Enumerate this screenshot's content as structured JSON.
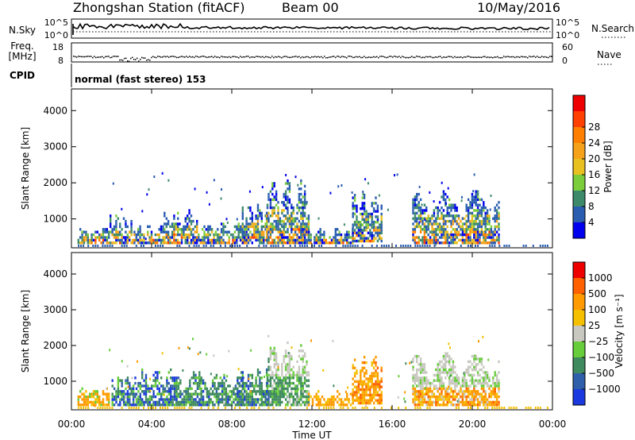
{
  "header": {
    "station": "Zhongshan Station (fitACF)",
    "beam": "Beam 00",
    "date": "10/May/2016"
  },
  "strips": {
    "nsky_label": "N.Sky",
    "nsky_ticks": [
      "10^5",
      "10^0"
    ],
    "nsearch_label": "N.Search",
    "nsearch_ticks": [
      "10^5",
      "10^0"
    ],
    "freq_label_1": "Freq.",
    "freq_label_2": "[MHz]",
    "freq_ticks": [
      "18",
      "8"
    ],
    "nave_label": "Nave",
    "nave_ticks": [
      "60",
      "0"
    ],
    "cpid_label": "CPID",
    "cpid_text": "normal (fast stereo) 153"
  },
  "chart_data": [
    {
      "type": "heatmap",
      "name": "power",
      "ylabel": "Slant Range [km]",
      "yticks": [
        "1000",
        "2000",
        "3000",
        "4000"
      ],
      "ylim": [
        200,
        4600
      ],
      "xlabel": "Time UT",
      "xticks": [
        "00:00",
        "04:00",
        "08:00",
        "12:00",
        "16:00",
        "20:00",
        "00:00"
      ],
      "xlim_hours": [
        0,
        24
      ],
      "colorbar_label": "Power [dB]",
      "colorbar_ticks": [
        "4",
        "8",
        "12",
        "16",
        "20",
        "24",
        "28"
      ],
      "colorbar_colors": [
        "#0000ee",
        "#2a5db0",
        "#3d8a6a",
        "#7ccd3c",
        "#e8c020",
        "#f5a21a",
        "#ff7f00",
        "#ff4000",
        "#ee0000"
      ],
      "echo_regions_hours_km": [
        [
          0.3,
          1.9,
          300,
          750
        ],
        [
          1.9,
          3.0,
          300,
          1100
        ],
        [
          3.0,
          4.6,
          300,
          800
        ],
        [
          4.6,
          6.3,
          300,
          1250
        ],
        [
          6.3,
          8.6,
          300,
          850
        ],
        [
          8.5,
          9.8,
          300,
          1400
        ],
        [
          9.7,
          11.8,
          300,
          2050
        ],
        [
          11.8,
          14.0,
          300,
          700
        ],
        [
          14.0,
          15.5,
          350,
          1700
        ],
        [
          17.0,
          21.3,
          300,
          1750
        ]
      ]
    },
    {
      "type": "heatmap",
      "name": "velocity",
      "ylabel": "Slant Range [km]",
      "yticks": [
        "1000",
        "2000",
        "3000",
        "4000"
      ],
      "ylim": [
        200,
        4600
      ],
      "xlabel": "Time UT",
      "xticks": [
        "00:00",
        "04:00",
        "08:00",
        "12:00",
        "16:00",
        "20:00",
        "00:00"
      ],
      "xlim_hours": [
        0,
        24
      ],
      "colorbar_label": "Velocity [m s⁻¹]",
      "colorbar_ticks": [
        "1000",
        "500",
        "100",
        "25",
        "−25",
        "−100",
        "−500",
        "−1000"
      ],
      "colorbar_colors": [
        "#1a3adf",
        "#2f5faa",
        "#3f8a5e",
        "#67cd3a",
        "#c8c8c0",
        "#f5c000",
        "#ff9a00",
        "#ff6000",
        "#ee0000"
      ],
      "echo_regions_hours_km": [
        [
          0.3,
          1.9,
          300,
          800
        ],
        [
          2.0,
          3.2,
          300,
          1150
        ],
        [
          3.2,
          5.2,
          300,
          1300
        ],
        [
          5.2,
          8.6,
          300,
          1250
        ],
        [
          8.5,
          9.8,
          300,
          1350
        ],
        [
          9.7,
          11.8,
          300,
          2050
        ],
        [
          11.8,
          14.0,
          300,
          700
        ],
        [
          14.0,
          15.5,
          350,
          1700
        ],
        [
          17.0,
          21.3,
          300,
          1750
        ]
      ]
    }
  ]
}
